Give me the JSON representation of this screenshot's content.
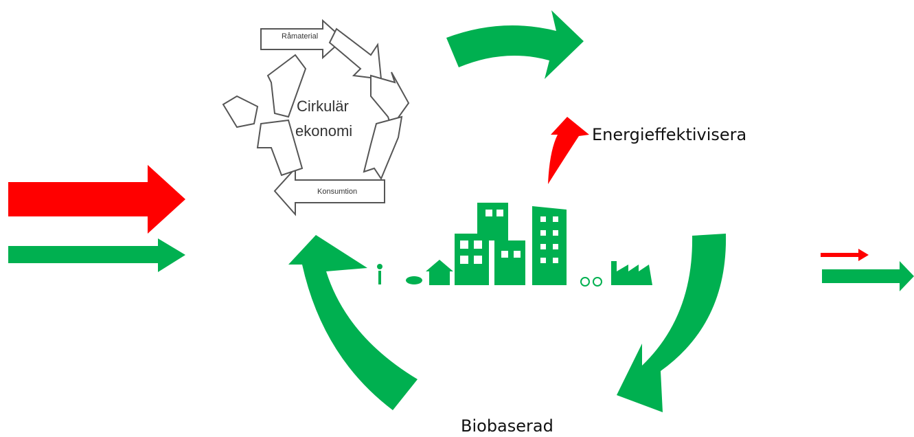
{
  "labels": {
    "energy": "Energieffektivisera",
    "bio": "Biobaserad"
  },
  "cycle": {
    "title_line1": "Cirkulär",
    "title_line2": "ekonomi",
    "steps": [
      "Råmaterial",
      "Konsumtion"
    ]
  }
}
